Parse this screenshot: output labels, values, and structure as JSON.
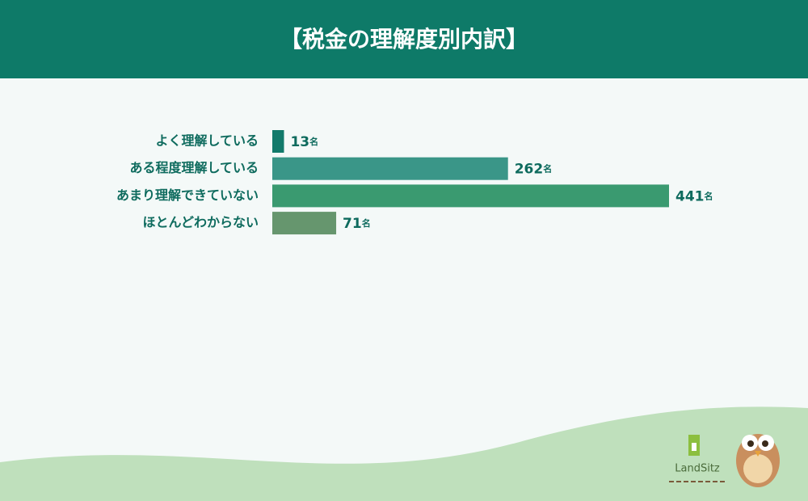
{
  "chart_data": {
    "type": "bar",
    "orientation": "horizontal",
    "title": "【税金の理解度別内訳】",
    "categories": [
      "よく理解している",
      "ある程度理解している",
      "あまり理解できていない",
      "ほとんどわからない"
    ],
    "values": [
      13,
      262,
      441,
      71
    ],
    "value_labels": [
      "13名",
      "262名",
      "441名",
      "71名"
    ],
    "colors": [
      "#127a6b",
      "#3a9688",
      "#3a9a70",
      "#66966e"
    ]
  },
  "logo_text": "LandSitz"
}
